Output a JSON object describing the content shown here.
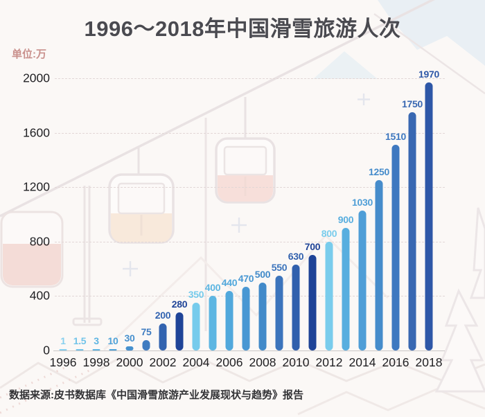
{
  "title": "1996～2018年中国滑雪旅游人次",
  "unit_label": "单位:万",
  "source": "数据来源:皮书数据库《中国滑雪旅游产业发展现状与趋势》报告",
  "chart_data": {
    "type": "bar",
    "title": "1996～2018年中国滑雪旅游人次",
    "unit": "万",
    "x": [
      1996,
      1997,
      1998,
      1999,
      2000,
      2001,
      2002,
      2003,
      2004,
      2005,
      2006,
      2007,
      2008,
      2009,
      2010,
      2011,
      2012,
      2013,
      2014,
      2015,
      2016,
      2017,
      2018
    ],
    "values": [
      1,
      1.5,
      3,
      10,
      30,
      75,
      200,
      280,
      350,
      400,
      440,
      470,
      500,
      550,
      630,
      700,
      800,
      900,
      1030,
      1250,
      1510,
      1750,
      1970
    ],
    "value_labels": [
      "1",
      "1.5",
      "3",
      "10",
      "30",
      "75",
      "200",
      "280",
      "350",
      "400",
      "440",
      "470",
      "500",
      "550",
      "630",
      "700",
      "800",
      "900",
      "1030",
      "1250",
      "1510",
      "1750",
      "1970"
    ],
    "bar_colors": [
      "#87d0ef",
      "#72c4e9",
      "#5fb5e2",
      "#4fa3d9",
      "#4690ce",
      "#3f7cc1",
      "#3263b0",
      "#1f4498",
      "#76cbec",
      "#5db6e2",
      "#51a8dc",
      "#4997d3",
      "#428ac9",
      "#3c74bc",
      "#3160ad",
      "#1e4397",
      "#79ccec",
      "#58aedf",
      "#4f9ed7",
      "#468ccb",
      "#3e78c0",
      "#3968b2",
      "#2e57a7"
    ],
    "xticks": [
      "1996",
      "1998",
      "2000",
      "2002",
      "2004",
      "2006",
      "2008",
      "2010",
      "2012",
      "2014",
      "2016",
      "2018"
    ],
    "yticks": [
      0,
      400,
      800,
      1200,
      1600,
      2000
    ],
    "ylim": [
      0,
      2000
    ],
    "xlabel": "",
    "ylabel": "单位:万",
    "grid": "horizontal-dashed",
    "legend": "none"
  },
  "colors": {
    "background": "#fbf8f6",
    "title_text": "#4a4a50",
    "unit_text": "#c9908c",
    "axis_text": "#1f1f22",
    "gridline": "#e2d7d6",
    "source_text": "#333336"
  }
}
